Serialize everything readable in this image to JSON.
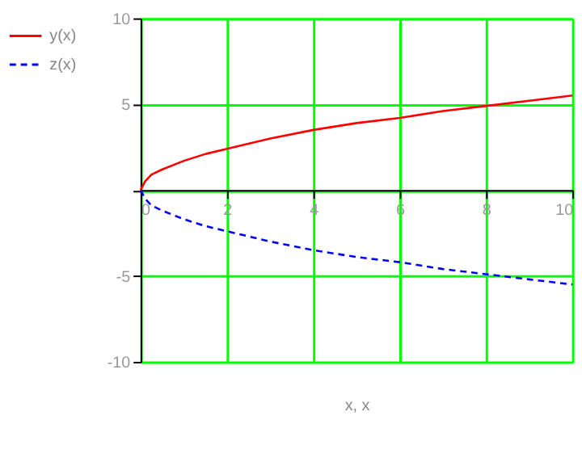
{
  "chart_data": {
    "type": "line",
    "xlabel": "x, x",
    "xlim": [
      0,
      10
    ],
    "ylim": [
      -10,
      10
    ],
    "xticks": [
      0,
      2,
      4,
      6,
      8,
      10
    ],
    "yticks": [
      -10,
      -5,
      {
        "value": 0,
        "label": null
      },
      5,
      10
    ],
    "grid": true,
    "legend": "left",
    "marker": "none",
    "x": [
      0,
      0.1,
      0.25,
      0.5,
      1,
      1.5,
      2,
      3,
      4,
      5,
      6,
      7,
      8,
      9,
      10
    ],
    "series": [
      {
        "name": "y(x)",
        "color": "#ff0000",
        "line_style": "solid",
        "values": [
          0,
          0.5,
          0.9,
          1.2,
          1.7,
          2.1,
          2.4,
          3.0,
          3.5,
          3.9,
          4.2,
          4.6,
          4.9,
          5.2,
          5.5
        ]
      },
      {
        "name": "z(x)",
        "color": "#0000ff",
        "line_style": "dashed",
        "values": [
          0,
          -0.5,
          -0.9,
          -1.2,
          -1.7,
          -2.1,
          -2.4,
          -3.0,
          -3.5,
          -3.9,
          -4.2,
          -4.6,
          -4.9,
          -5.2,
          -5.5
        ]
      }
    ]
  }
}
